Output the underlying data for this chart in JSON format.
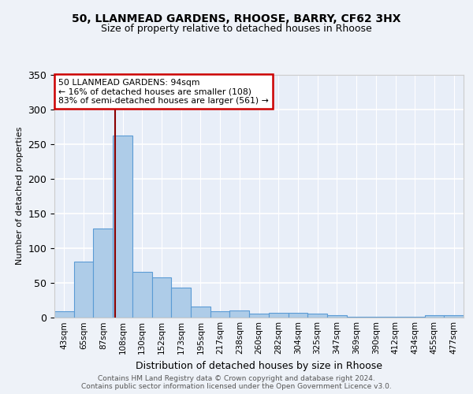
{
  "title1": "50, LLANMEAD GARDENS, RHOOSE, BARRY, CF62 3HX",
  "title2": "Size of property relative to detached houses in Rhoose",
  "xlabel": "Distribution of detached houses by size in Rhoose",
  "ylabel": "Number of detached properties",
  "categories": [
    "43sqm",
    "65sqm",
    "87sqm",
    "108sqm",
    "130sqm",
    "152sqm",
    "173sqm",
    "195sqm",
    "217sqm",
    "238sqm",
    "260sqm",
    "282sqm",
    "304sqm",
    "325sqm",
    "347sqm",
    "369sqm",
    "390sqm",
    "412sqm",
    "434sqm",
    "455sqm",
    "477sqm"
  ],
  "values": [
    8,
    80,
    128,
    262,
    65,
    57,
    43,
    15,
    8,
    10,
    5,
    6,
    6,
    5,
    3,
    1,
    1,
    1,
    1,
    3,
    3
  ],
  "bar_color": "#aecce8",
  "bar_edge_color": "#5b9bd5",
  "vline_pos": 2.62,
  "vline_color": "#8b0000",
  "annotation_text": "50 LLANMEAD GARDENS: 94sqm\n← 16% of detached houses are smaller (108)\n83% of semi-detached houses are larger (561) →",
  "annotation_box_color": "#ffffff",
  "annotation_box_edge": "#cc0000",
  "ylim": [
    0,
    350
  ],
  "yticks": [
    0,
    50,
    100,
    150,
    200,
    250,
    300,
    350
  ],
  "footer": "Contains HM Land Registry data © Crown copyright and database right 2024.\nContains public sector information licensed under the Open Government Licence v3.0.",
  "bg_color": "#eef2f8",
  "plot_bg_color": "#e8eef8"
}
